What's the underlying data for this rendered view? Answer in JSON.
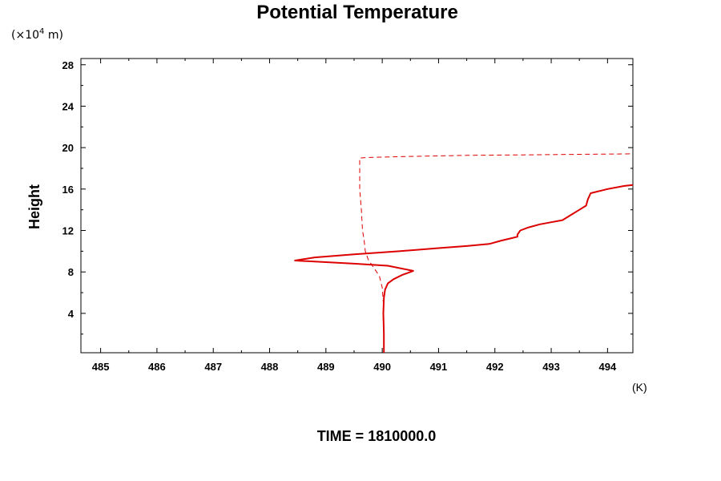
{
  "chart_data": {
    "type": "line",
    "title": "Potential Temperature",
    "ylabel": "Height",
    "yscale_label": "(×10",
    "yscale_exponent": "4",
    "yscale_unit": " m)",
    "xunit": "(K)",
    "caption": "TIME = 1810000.0",
    "xlim": [
      484.65,
      494.45
    ],
    "ylim": [
      0.2,
      28.6
    ],
    "xticks": [
      485,
      486,
      487,
      488,
      489,
      490,
      491,
      492,
      493,
      494
    ],
    "xtick_labels": [
      "485",
      "486",
      "487",
      "488",
      "489",
      "490",
      "491",
      "492",
      "493",
      "494"
    ],
    "yticks": [
      4,
      8,
      12,
      16,
      20,
      24,
      28
    ],
    "ytick_labels": [
      "4",
      "8",
      "12",
      "16",
      "20",
      "24",
      "28"
    ],
    "series_color": "#dd0000",
    "series": [
      {
        "style": "solid",
        "x": [
          490.03,
          490.03,
          490.02,
          490.03,
          490.05,
          490.1,
          490.2,
          490.35,
          490.55,
          490.1,
          489.5,
          488.8,
          488.45,
          488.8,
          489.5,
          490.3,
          491.0,
          491.5,
          491.9,
          492.1,
          492.4,
          492.4,
          492.45,
          492.6,
          492.8,
          493.0,
          493.2,
          493.35,
          493.5,
          493.62,
          493.65,
          493.7,
          494.0,
          494.3,
          494.45
        ],
        "y": [
          0.2,
          2.0,
          4.0,
          5.5,
          6.3,
          6.9,
          7.3,
          7.7,
          8.1,
          8.6,
          8.8,
          9.0,
          9.1,
          9.4,
          9.7,
          10.0,
          10.3,
          10.5,
          10.7,
          11.0,
          11.4,
          11.6,
          12.0,
          12.3,
          12.6,
          12.8,
          13.0,
          13.5,
          14.0,
          14.4,
          15.0,
          15.6,
          16.0,
          16.3,
          16.4
        ]
      },
      {
        "style": "dashed",
        "x": [
          490.03,
          490.03,
          490.02,
          490.0,
          489.95,
          489.85,
          489.75,
          489.7,
          489.68,
          489.65,
          489.63,
          489.6,
          489.6,
          489.6,
          489.75,
          490.5,
          491.5,
          492.5,
          493.5,
          494.45
        ],
        "y": [
          0.2,
          3.0,
          5.0,
          6.5,
          7.6,
          8.4,
          9.2,
          10.0,
          11.0,
          12.0,
          14.0,
          16.0,
          18.0,
          19.0,
          19.05,
          19.15,
          19.25,
          19.3,
          19.35,
          19.4
        ]
      }
    ]
  }
}
